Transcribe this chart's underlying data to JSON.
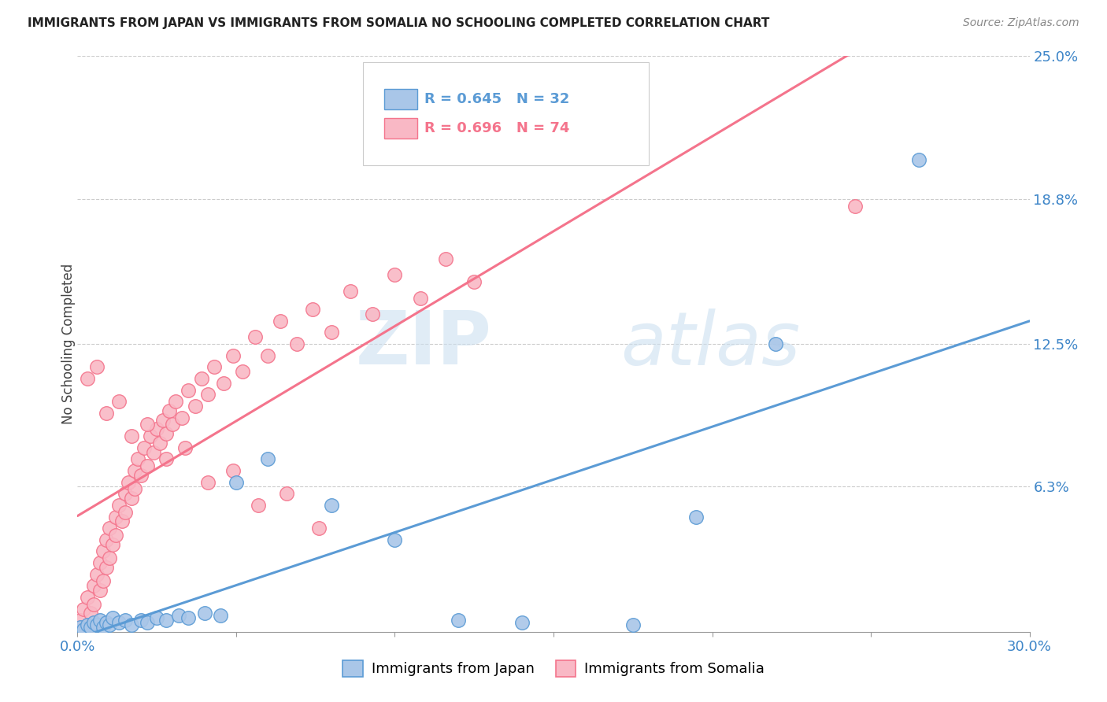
{
  "title": "IMMIGRANTS FROM JAPAN VS IMMIGRANTS FROM SOMALIA NO SCHOOLING COMPLETED CORRELATION CHART",
  "source": "Source: ZipAtlas.com",
  "ylabel": "No Schooling Completed",
  "xlim": [
    0.0,
    0.3
  ],
  "ylim": [
    0.0,
    0.25
  ],
  "y_tick_labels_right": [
    "6.3%",
    "12.5%",
    "18.8%",
    "25.0%"
  ],
  "y_tick_values_right": [
    0.063,
    0.125,
    0.188,
    0.25
  ],
  "japan_color": "#5b9bd5",
  "japan_color_fill": "#a9c6e8",
  "somalia_color": "#f4748c",
  "somalia_color_fill": "#f9b8c5",
  "japan_R": 0.645,
  "japan_N": 32,
  "somalia_R": 0.696,
  "somalia_N": 74,
  "japan_scatter_x": [
    0.001,
    0.002,
    0.003,
    0.004,
    0.005,
    0.006,
    0.007,
    0.008,
    0.009,
    0.01,
    0.011,
    0.013,
    0.015,
    0.017,
    0.02,
    0.022,
    0.025,
    0.028,
    0.032,
    0.035,
    0.04,
    0.045,
    0.05,
    0.06,
    0.08,
    0.1,
    0.12,
    0.14,
    0.175,
    0.195,
    0.22,
    0.265
  ],
  "japan_scatter_y": [
    0.002,
    0.001,
    0.003,
    0.002,
    0.004,
    0.003,
    0.005,
    0.002,
    0.004,
    0.003,
    0.006,
    0.004,
    0.005,
    0.003,
    0.005,
    0.004,
    0.006,
    0.005,
    0.007,
    0.006,
    0.008,
    0.007,
    0.065,
    0.075,
    0.055,
    0.04,
    0.005,
    0.004,
    0.003,
    0.05,
    0.125,
    0.205
  ],
  "somalia_scatter_x": [
    0.001,
    0.002,
    0.003,
    0.004,
    0.005,
    0.005,
    0.006,
    0.007,
    0.007,
    0.008,
    0.008,
    0.009,
    0.009,
    0.01,
    0.01,
    0.011,
    0.012,
    0.012,
    0.013,
    0.014,
    0.015,
    0.015,
    0.016,
    0.017,
    0.018,
    0.018,
    0.019,
    0.02,
    0.021,
    0.022,
    0.023,
    0.024,
    0.025,
    0.026,
    0.027,
    0.028,
    0.029,
    0.03,
    0.031,
    0.033,
    0.035,
    0.037,
    0.039,
    0.041,
    0.043,
    0.046,
    0.049,
    0.052,
    0.056,
    0.06,
    0.064,
    0.069,
    0.074,
    0.08,
    0.086,
    0.093,
    0.1,
    0.108,
    0.116,
    0.125,
    0.003,
    0.006,
    0.009,
    0.013,
    0.017,
    0.022,
    0.028,
    0.034,
    0.041,
    0.049,
    0.057,
    0.066,
    0.076,
    0.245
  ],
  "somalia_scatter_y": [
    0.005,
    0.01,
    0.015,
    0.008,
    0.02,
    0.012,
    0.025,
    0.018,
    0.03,
    0.022,
    0.035,
    0.028,
    0.04,
    0.032,
    0.045,
    0.038,
    0.05,
    0.042,
    0.055,
    0.048,
    0.06,
    0.052,
    0.065,
    0.058,
    0.07,
    0.062,
    0.075,
    0.068,
    0.08,
    0.072,
    0.085,
    0.078,
    0.088,
    0.082,
    0.092,
    0.086,
    0.096,
    0.09,
    0.1,
    0.093,
    0.105,
    0.098,
    0.11,
    0.103,
    0.115,
    0.108,
    0.12,
    0.113,
    0.128,
    0.12,
    0.135,
    0.125,
    0.14,
    0.13,
    0.148,
    0.138,
    0.155,
    0.145,
    0.162,
    0.152,
    0.11,
    0.115,
    0.095,
    0.1,
    0.085,
    0.09,
    0.075,
    0.08,
    0.065,
    0.07,
    0.055,
    0.06,
    0.045,
    0.185
  ],
  "watermark_zip": "ZIP",
  "watermark_atlas": "atlas",
  "background_color": "#ffffff",
  "grid_color": "#cccccc",
  "legend_box_color": "#dddddd"
}
